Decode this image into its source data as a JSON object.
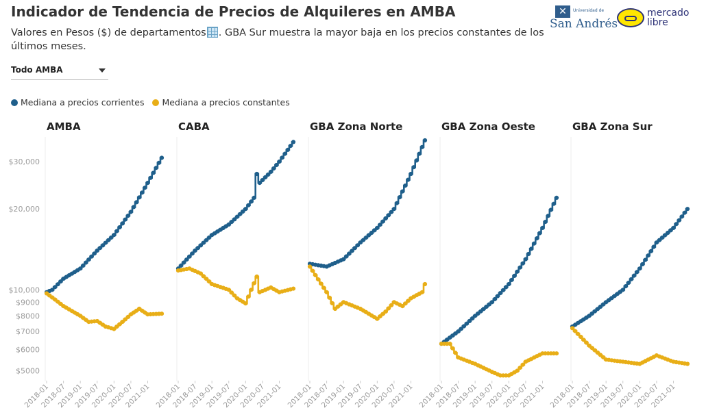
{
  "header": {
    "title": "Indicador de Tendencia de Precios de Alquileres en AMBA",
    "subtitle_before": "Valores en Pesos ($) de departamentos",
    "subtitle_after": ". GBA Sur muestra la mayor baja en los precios constantes de los últimos meses."
  },
  "logos": {
    "usa_small": "Universidad de",
    "usa_name": "San Andrés",
    "ml_line1": "mercado",
    "ml_line2": "libre"
  },
  "filter": {
    "selected": "Todo AMBA"
  },
  "legend": [
    {
      "label": "Mediana a precios corrientes",
      "color": "#1f5f8b"
    },
    {
      "label": "Mediana a precios constantes",
      "color": "#e8ae17"
    }
  ],
  "chart_data": {
    "type": "line",
    "y_scale": "log",
    "ylim": [
      4700,
      36000
    ],
    "y_ticks": [
      5000,
      6000,
      7000,
      8000,
      9000,
      10000,
      20000,
      30000
    ],
    "y_tick_labels": [
      "$5000",
      "$6000",
      "$7000",
      "$8000",
      "$9000",
      "$10,000",
      "$20,000",
      "$30,000"
    ],
    "x_ticks": [
      "2018-01",
      "2018-07",
      "2019-01",
      "2019-07",
      "2020-01",
      "2020-07",
      "2021-01"
    ],
    "x_range": [
      "2018-01",
      "2021-06"
    ],
    "grid": false,
    "legend_position": "top-left",
    "panels": [
      {
        "title": "AMBA",
        "series": [
          {
            "name": "Mediana a precios corrientes",
            "color": "#1f5f8b",
            "knots": [
              [
                "2018-01",
                9800
              ],
              [
                "2018-03",
                10000
              ],
              [
                "2018-07",
                11000
              ],
              [
                "2019-01",
                12000
              ],
              [
                "2019-07",
                14000
              ],
              [
                "2020-01",
                16000
              ],
              [
                "2020-07",
                19500
              ],
              [
                "2021-01",
                25000
              ],
              [
                "2021-06",
                31000
              ]
            ]
          },
          {
            "name": "Mediana a precios constantes",
            "color": "#e8ae17",
            "knots": [
              [
                "2018-01",
                9700
              ],
              [
                "2018-04",
                9200
              ],
              [
                "2018-07",
                8700
              ],
              [
                "2019-01",
                8000
              ],
              [
                "2019-04",
                7600
              ],
              [
                "2019-07",
                7650
              ],
              [
                "2019-10",
                7300
              ],
              [
                "2020-01",
                7150
              ],
              [
                "2020-04",
                7600
              ],
              [
                "2020-07",
                8100
              ],
              [
                "2020-10",
                8500
              ],
              [
                "2021-01",
                8100
              ],
              [
                "2021-06",
                8150
              ]
            ]
          }
        ]
      },
      {
        "title": "CABA",
        "series": [
          {
            "name": "Mediana a precios corrientes",
            "color": "#1f5f8b",
            "knots": [
              [
                "2018-01",
                12000
              ],
              [
                "2018-07",
                14000
              ],
              [
                "2019-01",
                16000
              ],
              [
                "2019-07",
                17500
              ],
              [
                "2020-01",
                20000
              ],
              [
                "2020-04",
                22000
              ],
              [
                "2020-05",
                27000
              ],
              [
                "2020-06",
                25000
              ],
              [
                "2020-10",
                27500
              ],
              [
                "2021-01",
                30000
              ],
              [
                "2021-06",
                35500
              ]
            ]
          },
          {
            "name": "Mediana a precios constantes",
            "color": "#e8ae17",
            "knots": [
              [
                "2018-01",
                11800
              ],
              [
                "2018-05",
                12000
              ],
              [
                "2018-09",
                11500
              ],
              [
                "2019-01",
                10500
              ],
              [
                "2019-07",
                10000
              ],
              [
                "2019-10",
                9300
              ],
              [
                "2020-01",
                8900
              ],
              [
                "2020-03",
                10000
              ],
              [
                "2020-05",
                11200
              ],
              [
                "2020-06",
                9800
              ],
              [
                "2020-10",
                10200
              ],
              [
                "2021-01",
                9800
              ],
              [
                "2021-06",
                10100
              ]
            ]
          }
        ]
      },
      {
        "title": "GBA Zona Norte",
        "series": [
          {
            "name": "Mediana a precios corrientes",
            "color": "#1f5f8b",
            "knots": [
              [
                "2018-01",
                12500
              ],
              [
                "2018-07",
                12200
              ],
              [
                "2019-01",
                13000
              ],
              [
                "2019-07",
                15000
              ],
              [
                "2020-01",
                17000
              ],
              [
                "2020-07",
                20000
              ],
              [
                "2021-01",
                27000
              ],
              [
                "2021-06",
                36000
              ]
            ]
          },
          {
            "name": "Mediana a precios constantes",
            "color": "#e8ae17",
            "knots": [
              [
                "2018-01",
                12200
              ],
              [
                "2018-07",
                9800
              ],
              [
                "2018-10",
                8500
              ],
              [
                "2019-01",
                9000
              ],
              [
                "2019-07",
                8500
              ],
              [
                "2020-01",
                7800
              ],
              [
                "2020-04",
                8300
              ],
              [
                "2020-07",
                9000
              ],
              [
                "2020-10",
                8700
              ],
              [
                "2021-01",
                9300
              ],
              [
                "2021-05",
                9800
              ],
              [
                "2021-06",
                10500
              ]
            ]
          }
        ]
      },
      {
        "title": "GBA Zona Oeste",
        "series": [
          {
            "name": "Mediana a precios corrientes",
            "color": "#1f5f8b",
            "knots": [
              [
                "2018-01",
                6300
              ],
              [
                "2018-07",
                7000
              ],
              [
                "2019-01",
                8000
              ],
              [
                "2019-07",
                9000
              ],
              [
                "2020-01",
                10500
              ],
              [
                "2020-07",
                13000
              ],
              [
                "2021-01",
                17000
              ],
              [
                "2021-06",
                22000
              ]
            ]
          },
          {
            "name": "Mediana a precios constantes",
            "color": "#e8ae17",
            "knots": [
              [
                "2018-01",
                6300
              ],
              [
                "2018-04",
                6300
              ],
              [
                "2018-07",
                5600
              ],
              [
                "2019-01",
                5300
              ],
              [
                "2019-07",
                4950
              ],
              [
                "2019-10",
                4800
              ],
              [
                "2020-01",
                4800
              ],
              [
                "2020-04",
                5000
              ],
              [
                "2020-07",
                5400
              ],
              [
                "2021-01",
                5800
              ],
              [
                "2021-06",
                5800
              ]
            ]
          }
        ]
      },
      {
        "title": "GBA Zona Sur",
        "series": [
          {
            "name": "Mediana a precios corrientes",
            "color": "#1f5f8b",
            "knots": [
              [
                "2018-01",
                7300
              ],
              [
                "2018-07",
                8000
              ],
              [
                "2019-01",
                9000
              ],
              [
                "2019-07",
                10000
              ],
              [
                "2020-01",
                12000
              ],
              [
                "2020-07",
                15000
              ],
              [
                "2021-01",
                17000
              ],
              [
                "2021-06",
                20000
              ]
            ]
          },
          {
            "name": "Mediana a precios constantes",
            "color": "#e8ae17",
            "knots": [
              [
                "2018-01",
                7200
              ],
              [
                "2018-07",
                6200
              ],
              [
                "2019-01",
                5500
              ],
              [
                "2019-07",
                5400
              ],
              [
                "2020-01",
                5300
              ],
              [
                "2020-07",
                5700
              ],
              [
                "2021-01",
                5400
              ],
              [
                "2021-06",
                5300
              ]
            ]
          }
        ]
      }
    ]
  }
}
